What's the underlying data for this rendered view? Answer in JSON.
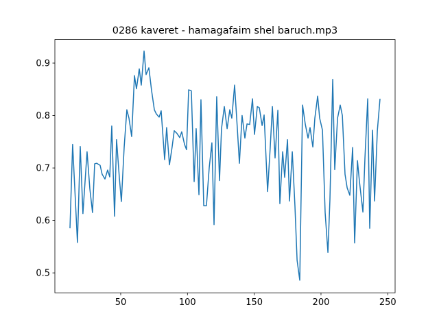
{
  "chart_data": {
    "type": "line",
    "title": "0286 kaveret - hamagafaim shel baruch.mp3",
    "color": "#1f77b4",
    "x": [
      12.0,
      14.0,
      17.6,
      19.7,
      21.7,
      24.8,
      26.9,
      28.9,
      30.5,
      32.0,
      34.6,
      36.1,
      38.2,
      40.2,
      41.8,
      43.3,
      45.4,
      46.9,
      49.0,
      50.5,
      52.6,
      54.6,
      56.2,
      58.2,
      60.3,
      61.8,
      63.9,
      65.4,
      67.5,
      69.0,
      71.1,
      73.1,
      75.2,
      76.7,
      78.8,
      80.3,
      82.9,
      84.4,
      86.5,
      88.5,
      90.1,
      92.1,
      94.2,
      95.7,
      97.8,
      99.3,
      100.9,
      102.9,
      105.0,
      106.5,
      108.6,
      110.1,
      112.2,
      114.2,
      116.3,
      118.3,
      119.9,
      121.9,
      124.0,
      125.5,
      127.6,
      129.7,
      131.7,
      133.2,
      135.3,
      137.4,
      138.9,
      140.9,
      143.0,
      144.6,
      146.6,
      148.7,
      150.2,
      152.3,
      153.8,
      155.9,
      157.4,
      160.0,
      162.0,
      163.6,
      165.6,
      167.7,
      169.2,
      171.3,
      172.8,
      174.9,
      176.4,
      178.5,
      180.5,
      182.1,
      184.1,
      186.2,
      188.2,
      190.3,
      191.8,
      193.9,
      195.4,
      197.5,
      199.0,
      201.1,
      203.1,
      205.2,
      206.7,
      208.8,
      210.3,
      212.4,
      214.4,
      216.0,
      218.0,
      219.6,
      221.6,
      223.7,
      225.2,
      227.3,
      228.8,
      231.4,
      232.9,
      235.0,
      236.5,
      238.6,
      240.1,
      242.2,
      244.2
    ],
    "values": [
      0.585,
      0.745,
      0.558,
      0.741,
      0.613,
      0.731,
      0.66,
      0.615,
      0.708,
      0.709,
      0.705,
      0.688,
      0.679,
      0.696,
      0.683,
      0.78,
      0.608,
      0.754,
      0.681,
      0.636,
      0.74,
      0.811,
      0.795,
      0.76,
      0.876,
      0.851,
      0.889,
      0.858,
      0.923,
      0.878,
      0.891,
      0.848,
      0.811,
      0.803,
      0.797,
      0.809,
      0.716,
      0.777,
      0.706,
      0.74,
      0.771,
      0.766,
      0.758,
      0.769,
      0.745,
      0.735,
      0.849,
      0.847,
      0.674,
      0.775,
      0.649,
      0.83,
      0.628,
      0.628,
      0.701,
      0.748,
      0.592,
      0.836,
      0.676,
      0.775,
      0.817,
      0.775,
      0.811,
      0.795,
      0.858,
      0.773,
      0.709,
      0.8,
      0.757,
      0.784,
      0.783,
      0.832,
      0.764,
      0.817,
      0.815,
      0.781,
      0.801,
      0.655,
      0.74,
      0.817,
      0.719,
      0.81,
      0.632,
      0.731,
      0.682,
      0.754,
      0.637,
      0.731,
      0.627,
      0.524,
      0.486,
      0.82,
      0.784,
      0.757,
      0.777,
      0.74,
      0.795,
      0.837,
      0.795,
      0.772,
      0.615,
      0.539,
      0.64,
      0.869,
      0.697,
      0.795,
      0.82,
      0.8,
      0.688,
      0.662,
      0.648,
      0.739,
      0.557,
      0.714,
      0.674,
      0.616,
      0.718,
      0.832,
      0.585,
      0.772,
      0.637,
      0.771,
      0.832
    ],
    "xlim": [
      0.7,
      255.5
    ],
    "xticks": [
      50,
      100,
      150,
      200,
      250
    ],
    "ylim": [
      0.462,
      0.945
    ],
    "yticks": [
      0.5,
      0.6,
      0.7,
      0.8,
      0.9
    ]
  }
}
